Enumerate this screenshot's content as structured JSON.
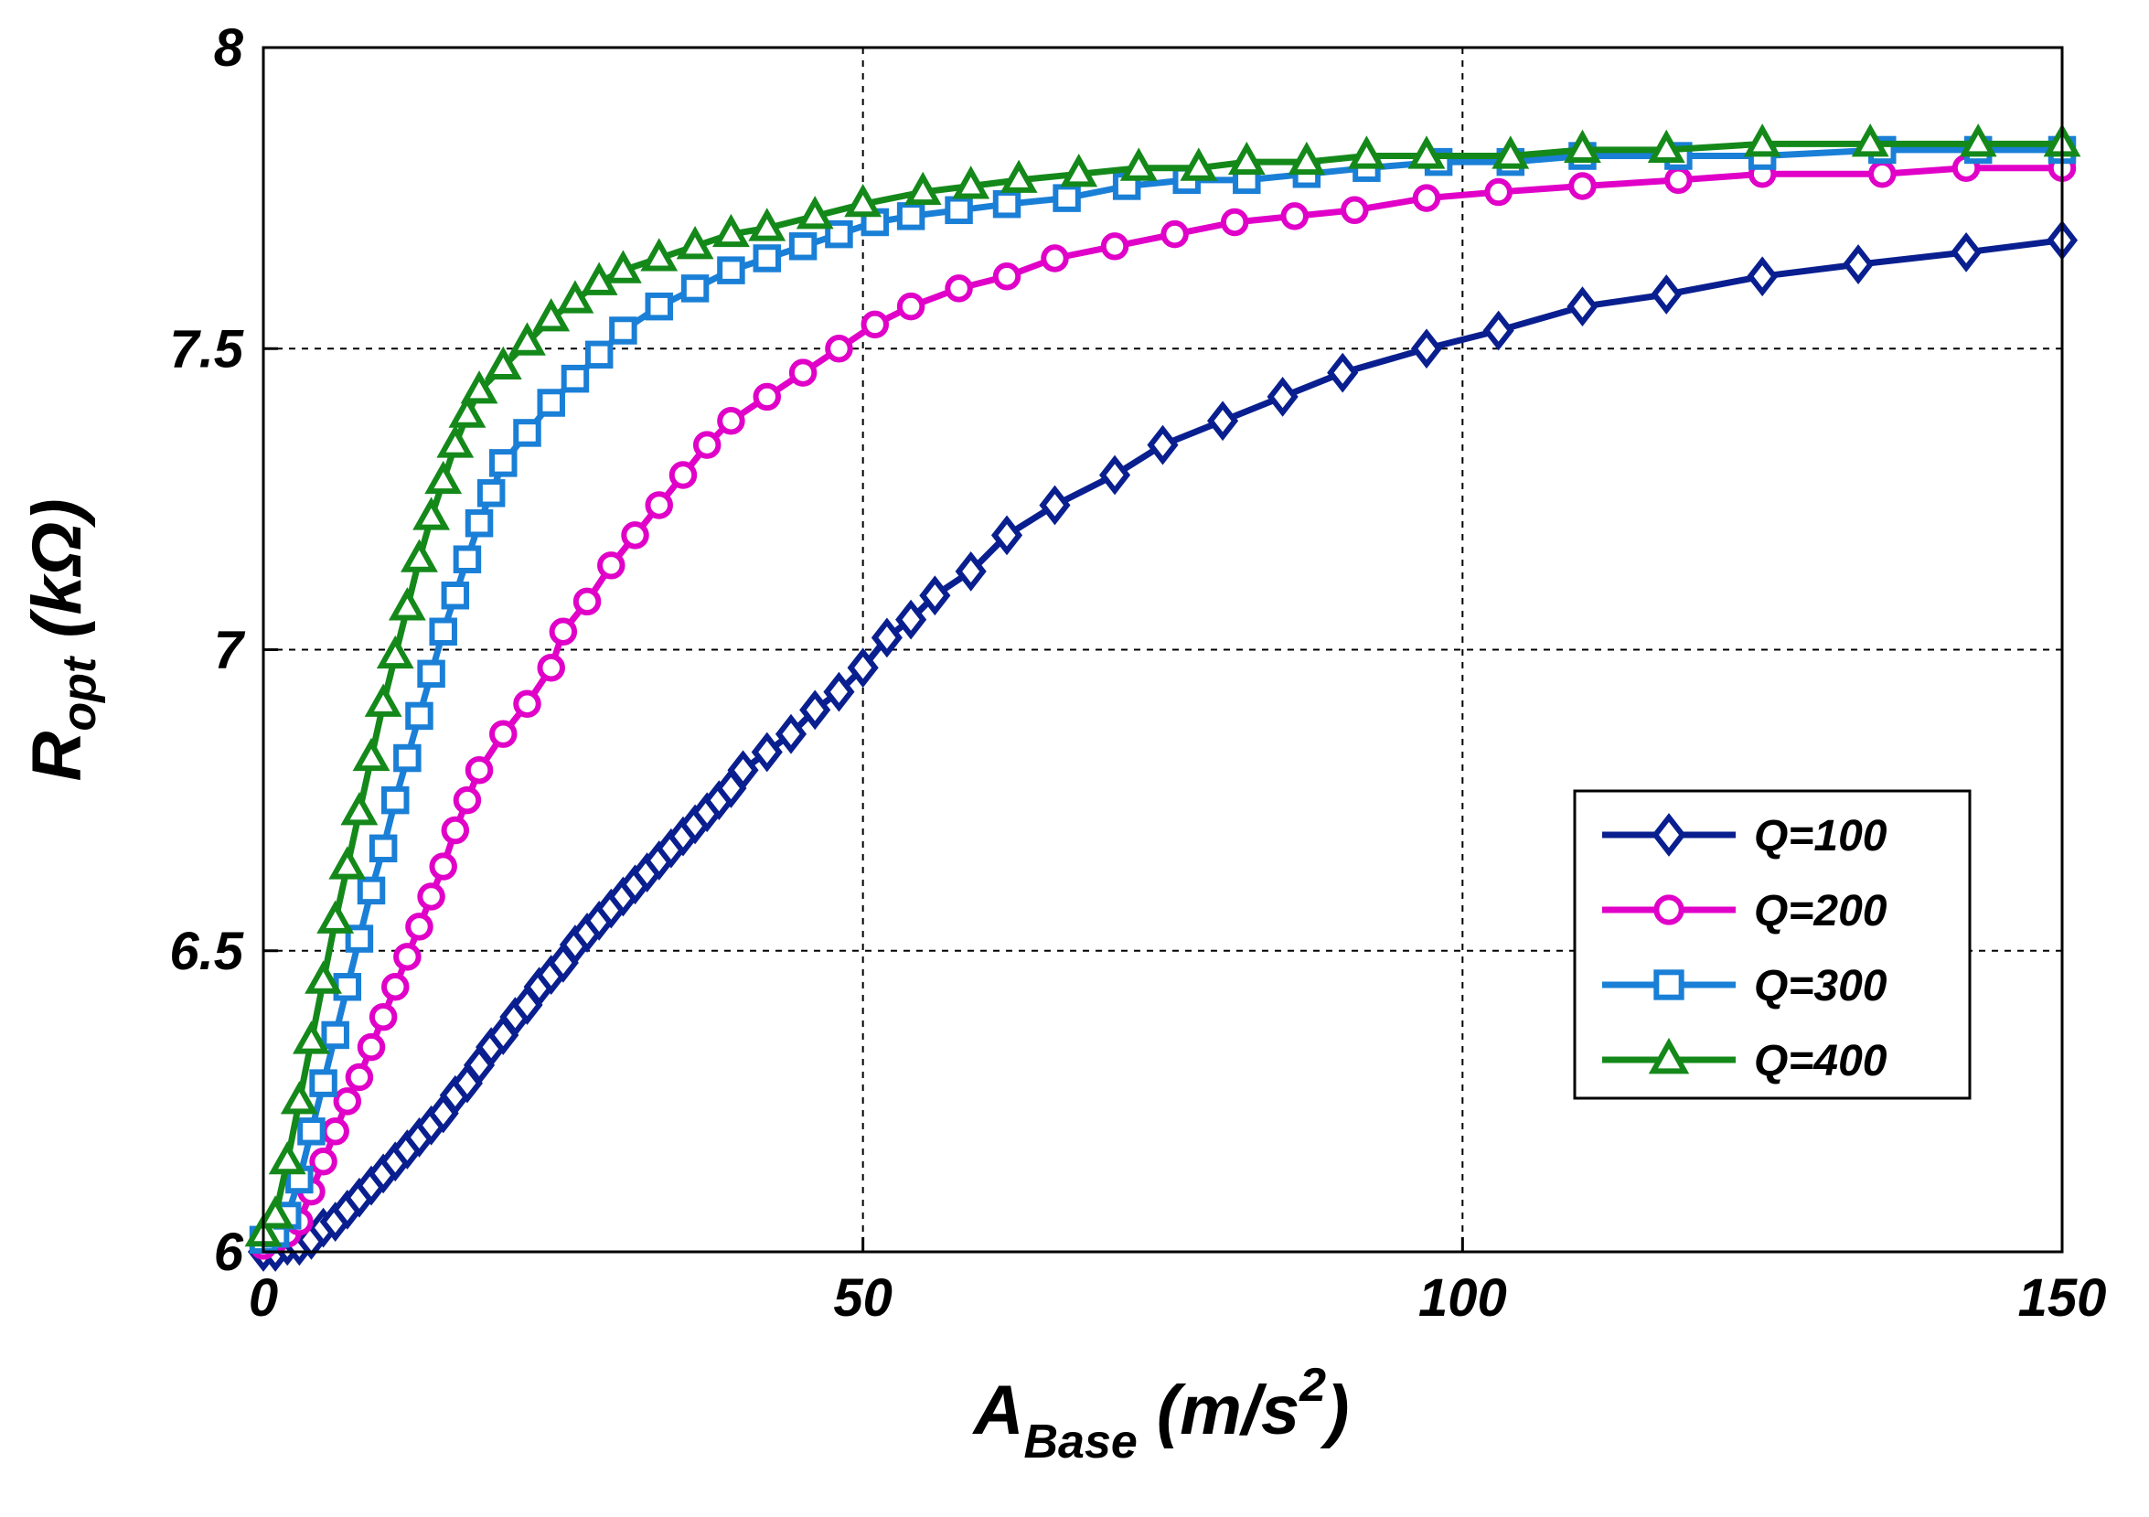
{
  "chart_data": {
    "type": "line",
    "title": "",
    "xlabel": {
      "main": "A",
      "sub": "Base",
      "rest": " (m/s",
      "sup": "2",
      "close": ")"
    },
    "ylabel": {
      "main": "R",
      "sub": "opt",
      "rest": " (kΩ)"
    },
    "xlim": [
      0,
      150
    ],
    "ylim": [
      6,
      8
    ],
    "xticks": [
      0,
      50,
      100,
      150
    ],
    "yticks": [
      6,
      6.5,
      7,
      7.5,
      8
    ],
    "xtick_labels": [
      "0",
      "50",
      "100",
      "150"
    ],
    "ytick_labels": [
      "6",
      "6.5",
      "7",
      "7.5",
      "8"
    ],
    "grid": true,
    "legend_position": "lower-right",
    "series": [
      {
        "name": "Q=100",
        "color": "#0a1f8f",
        "marker": "diamond",
        "points": [
          [
            0,
            6.0
          ],
          [
            1,
            6.0
          ],
          [
            2,
            6.01
          ],
          [
            3,
            6.01
          ],
          [
            4,
            6.02
          ],
          [
            5,
            6.04
          ],
          [
            6,
            6.05
          ],
          [
            7,
            6.07
          ],
          [
            8,
            6.09
          ],
          [
            9,
            6.11
          ],
          [
            10,
            6.13
          ],
          [
            11,
            6.15
          ],
          [
            12,
            6.17
          ],
          [
            13,
            6.19
          ],
          [
            14,
            6.21
          ],
          [
            15,
            6.23
          ],
          [
            16,
            6.26
          ],
          [
            17,
            6.28
          ],
          [
            18,
            6.31
          ],
          [
            19,
            6.34
          ],
          [
            20,
            6.36
          ],
          [
            21,
            6.39
          ],
          [
            22,
            6.41
          ],
          [
            23,
            6.44
          ],
          [
            24,
            6.46
          ],
          [
            25,
            6.48
          ],
          [
            26,
            6.51
          ],
          [
            27,
            6.53
          ],
          [
            28,
            6.55
          ],
          [
            29,
            6.57
          ],
          [
            30,
            6.59
          ],
          [
            31,
            6.61
          ],
          [
            32,
            6.63
          ],
          [
            33,
            6.65
          ],
          [
            34,
            6.67
          ],
          [
            35,
            6.69
          ],
          [
            36,
            6.71
          ],
          [
            37,
            6.73
          ],
          [
            38,
            6.75
          ],
          [
            39,
            6.77
          ],
          [
            40,
            6.8
          ],
          [
            42,
            6.83
          ],
          [
            44,
            6.86
          ],
          [
            46,
            6.9
          ],
          [
            48,
            6.93
          ],
          [
            50,
            6.97
          ],
          [
            52,
            7.02
          ],
          [
            54,
            7.05
          ],
          [
            56,
            7.09
          ],
          [
            59,
            7.13
          ],
          [
            62,
            7.19
          ],
          [
            66,
            7.24
          ],
          [
            71,
            7.29
          ],
          [
            75,
            7.34
          ],
          [
            80,
            7.38
          ],
          [
            85,
            7.42
          ],
          [
            90,
            7.46
          ],
          [
            97,
            7.5
          ],
          [
            103,
            7.53
          ],
          [
            110,
            7.57
          ],
          [
            117,
            7.59
          ],
          [
            125,
            7.62
          ],
          [
            133,
            7.64
          ],
          [
            142,
            7.66
          ],
          [
            150,
            7.68
          ]
        ]
      },
      {
        "name": "Q=200",
        "color": "#e000c8",
        "marker": "circle",
        "points": [
          [
            0,
            6.01
          ],
          [
            1,
            6.02
          ],
          [
            2,
            6.03
          ],
          [
            3,
            6.05
          ],
          [
            4,
            6.1
          ],
          [
            5,
            6.15
          ],
          [
            6,
            6.2
          ],
          [
            7,
            6.25
          ],
          [
            8,
            6.29
          ],
          [
            9,
            6.34
          ],
          [
            10,
            6.39
          ],
          [
            11,
            6.44
          ],
          [
            12,
            6.49
          ],
          [
            13,
            6.54
          ],
          [
            14,
            6.59
          ],
          [
            15,
            6.64
          ],
          [
            16,
            6.7
          ],
          [
            17,
            6.75
          ],
          [
            18,
            6.8
          ],
          [
            20,
            6.86
          ],
          [
            22,
            6.91
          ],
          [
            24,
            6.97
          ],
          [
            25,
            7.03
          ],
          [
            27,
            7.08
          ],
          [
            29,
            7.14
          ],
          [
            31,
            7.19
          ],
          [
            33,
            7.24
          ],
          [
            35,
            7.29
          ],
          [
            37,
            7.34
          ],
          [
            39,
            7.38
          ],
          [
            42,
            7.42
          ],
          [
            45,
            7.46
          ],
          [
            48,
            7.5
          ],
          [
            51,
            7.54
          ],
          [
            54,
            7.57
          ],
          [
            58,
            7.6
          ],
          [
            62,
            7.62
          ],
          [
            66,
            7.65
          ],
          [
            71,
            7.67
          ],
          [
            76,
            7.69
          ],
          [
            81,
            7.71
          ],
          [
            86,
            7.72
          ],
          [
            91,
            7.73
          ],
          [
            97,
            7.75
          ],
          [
            103,
            7.76
          ],
          [
            110,
            7.77
          ],
          [
            118,
            7.78
          ],
          [
            125,
            7.79
          ],
          [
            135,
            7.79
          ],
          [
            142,
            7.8
          ],
          [
            150,
            7.8
          ]
        ]
      },
      {
        "name": "Q=300",
        "color": "#1a7fd6",
        "marker": "square",
        "points": [
          [
            0,
            6.02
          ],
          [
            1,
            6.03
          ],
          [
            2,
            6.06
          ],
          [
            3,
            6.12
          ],
          [
            4,
            6.2
          ],
          [
            5,
            6.28
          ],
          [
            6,
            6.36
          ],
          [
            7,
            6.44
          ],
          [
            8,
            6.52
          ],
          [
            9,
            6.6
          ],
          [
            10,
            6.67
          ],
          [
            11,
            6.75
          ],
          [
            12,
            6.82
          ],
          [
            13,
            6.89
          ],
          [
            14,
            6.96
          ],
          [
            15,
            7.03
          ],
          [
            16,
            7.09
          ],
          [
            17,
            7.15
          ],
          [
            18,
            7.21
          ],
          [
            19,
            7.26
          ],
          [
            20,
            7.31
          ],
          [
            22,
            7.36
          ],
          [
            24,
            7.41
          ],
          [
            26,
            7.45
          ],
          [
            28,
            7.49
          ],
          [
            30,
            7.53
          ],
          [
            33,
            7.57
          ],
          [
            36,
            7.6
          ],
          [
            39,
            7.63
          ],
          [
            42,
            7.65
          ],
          [
            45,
            7.67
          ],
          [
            48,
            7.69
          ],
          [
            51,
            7.71
          ],
          [
            54,
            7.72
          ],
          [
            58,
            7.73
          ],
          [
            62,
            7.74
          ],
          [
            67,
            7.75
          ],
          [
            72,
            7.77
          ],
          [
            77,
            7.78
          ],
          [
            82,
            7.78
          ],
          [
            87,
            7.79
          ],
          [
            92,
            7.8
          ],
          [
            98,
            7.81
          ],
          [
            104,
            7.81
          ],
          [
            110,
            7.82
          ],
          [
            118,
            7.82
          ],
          [
            125,
            7.82
          ],
          [
            135,
            7.83
          ],
          [
            143,
            7.83
          ],
          [
            150,
            7.83
          ]
        ]
      },
      {
        "name": "Q=400",
        "color": "#14891a",
        "marker": "triangle",
        "points": [
          [
            0,
            6.03
          ],
          [
            1,
            6.06
          ],
          [
            2,
            6.15
          ],
          [
            3,
            6.25
          ],
          [
            4,
            6.35
          ],
          [
            5,
            6.45
          ],
          [
            6,
            6.55
          ],
          [
            7,
            6.64
          ],
          [
            8,
            6.73
          ],
          [
            9,
            6.82
          ],
          [
            10,
            6.91
          ],
          [
            11,
            6.99
          ],
          [
            12,
            7.07
          ],
          [
            13,
            7.15
          ],
          [
            14,
            7.22
          ],
          [
            15,
            7.28
          ],
          [
            16,
            7.34
          ],
          [
            17,
            7.39
          ],
          [
            18,
            7.43
          ],
          [
            20,
            7.47
          ],
          [
            22,
            7.51
          ],
          [
            24,
            7.55
          ],
          [
            26,
            7.58
          ],
          [
            28,
            7.61
          ],
          [
            30,
            7.63
          ],
          [
            33,
            7.65
          ],
          [
            36,
            7.67
          ],
          [
            39,
            7.69
          ],
          [
            42,
            7.7
          ],
          [
            46,
            7.72
          ],
          [
            50,
            7.74
          ],
          [
            55,
            7.76
          ],
          [
            59,
            7.77
          ],
          [
            63,
            7.78
          ],
          [
            68,
            7.79
          ],
          [
            73,
            7.8
          ],
          [
            78,
            7.8
          ],
          [
            82,
            7.81
          ],
          [
            87,
            7.81
          ],
          [
            92,
            7.82
          ],
          [
            97,
            7.82
          ],
          [
            104,
            7.82
          ],
          [
            110,
            7.83
          ],
          [
            117,
            7.83
          ],
          [
            125,
            7.84
          ],
          [
            134,
            7.84
          ],
          [
            143,
            7.84
          ],
          [
            150,
            7.84
          ]
        ]
      }
    ]
  }
}
